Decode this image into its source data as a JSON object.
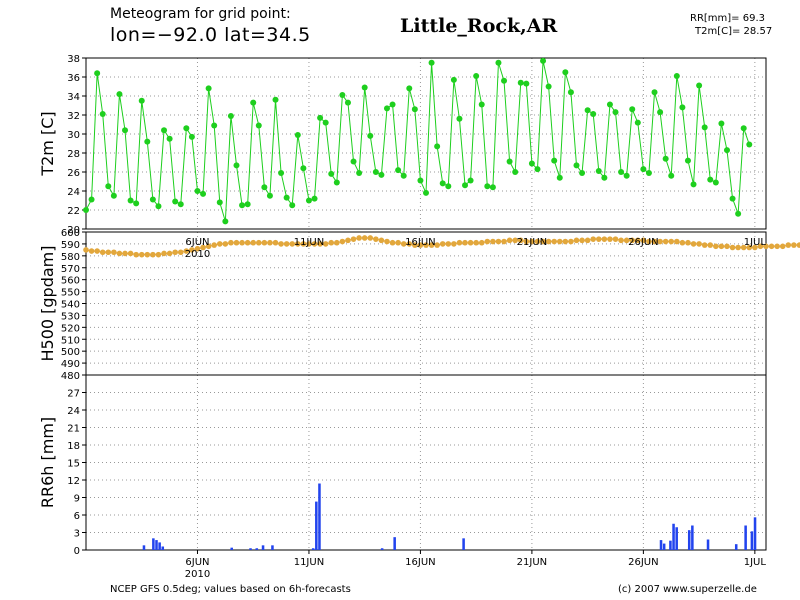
{
  "header": {
    "title_line1": "Meteogram for grid point:",
    "title_line2": "lon=−92.0  lat=34.5",
    "station": "Little_Rock,AR",
    "rr_summary": "RR[mm]= 69.3",
    "t2m_last": "T2m[C]= 28.57"
  },
  "footer": {
    "source": "NCEP GFS 0.5deg; values based on 6h-forecasts",
    "copyright": "(c) 2007 www.superzelle.de"
  },
  "chart_data": [
    {
      "type": "line",
      "ylabel": "T2m [C]",
      "ylim": [
        20,
        38
      ],
      "yticks": [
        20,
        22,
        24,
        26,
        28,
        30,
        32,
        34,
        36,
        38
      ],
      "grid": true,
      "color": "#1ecf1e",
      "x_unit": "6h steps from 1 JUN 2010 00Z",
      "values": [
        22.0,
        23.1,
        36.4,
        32.1,
        24.5,
        23.5,
        34.2,
        30.4,
        23.0,
        22.7,
        33.5,
        29.2,
        23.1,
        22.4,
        30.4,
        29.5,
        22.9,
        22.6,
        30.6,
        29.7,
        24.0,
        23.7,
        34.8,
        30.9,
        22.8,
        20.8,
        31.9,
        26.7,
        22.5,
        22.6,
        33.3,
        30.9,
        24.4,
        23.5,
        33.6,
        25.9,
        23.3,
        22.5,
        29.9,
        26.4,
        23.0,
        23.2,
        31.7,
        31.2,
        25.8,
        24.9,
        34.1,
        33.3,
        27.1,
        25.9,
        34.9,
        29.8,
        26.0,
        25.7,
        32.7,
        33.1,
        26.2,
        25.6,
        34.8,
        32.6,
        25.1,
        23.8,
        37.5,
        28.7,
        24.8,
        24.5,
        35.7,
        31.6,
        24.6,
        25.1,
        36.1,
        33.1,
        24.5,
        24.4,
        37.5,
        35.6,
        27.1,
        26.0,
        35.4,
        35.3,
        26.9,
        26.3,
        37.7,
        35.0,
        27.2,
        25.4,
        36.5,
        34.4,
        26.7,
        25.9,
        32.5,
        32.1,
        26.1,
        25.4,
        33.1,
        32.3,
        26.0,
        25.6,
        32.6,
        31.2,
        26.3,
        25.9,
        34.4,
        32.3,
        27.4,
        25.6,
        36.1,
        32.8,
        27.2,
        24.7,
        35.1,
        30.7,
        25.2,
        24.9,
        31.1,
        28.3,
        23.2,
        21.6,
        30.6,
        28.9
      ]
    },
    {
      "type": "line",
      "ylabel": "H500 [gpdam]",
      "ylim": [
        480,
        600
      ],
      "yticks": [
        480,
        490,
        500,
        510,
        520,
        530,
        540,
        550,
        560,
        570,
        580,
        590,
        600
      ],
      "grid": true,
      "color": "#e2a73c",
      "x_unit": "6h steps from 1 JUN 2010 00Z",
      "values": [
        585,
        584,
        584,
        583,
        583,
        583,
        582,
        582,
        582,
        581,
        581,
        581,
        581,
        581,
        582,
        582,
        583,
        583,
        584,
        585,
        586,
        587,
        588,
        589,
        590,
        590,
        591,
        591,
        591,
        591,
        591,
        591,
        591,
        591,
        591,
        590,
        590,
        590,
        590,
        590,
        590,
        590,
        590,
        590,
        591,
        591,
        592,
        593,
        594,
        595,
        595,
        595,
        594,
        593,
        592,
        591,
        591,
        590,
        590,
        589,
        589,
        589,
        589,
        589,
        590,
        590,
        590,
        591,
        591,
        591,
        591,
        591,
        592,
        592,
        592,
        592,
        593,
        593,
        593,
        592,
        592,
        592,
        592,
        592,
        592,
        592,
        592,
        592,
        593,
        593,
        593,
        594,
        594,
        594,
        594,
        594,
        593,
        593,
        593,
        593,
        593,
        592,
        592,
        592,
        592,
        592,
        592,
        591,
        591,
        590,
        590,
        589,
        589,
        588,
        588,
        588,
        587,
        587,
        587,
        587,
        587,
        588,
        588,
        588,
        588,
        588,
        589,
        589,
        589,
        590,
        590,
        590,
        591,
        591,
        592,
        592
      ]
    },
    {
      "type": "bar",
      "ylabel": "RR6h [mm]",
      "ylim": [
        0,
        30
      ],
      "yticks": [
        0,
        3,
        6,
        9,
        12,
        15,
        18,
        21,
        24,
        27
      ],
      "grid": true,
      "color": "#2244ee",
      "x_unit": "6h steps from 1 JUN 2010 00Z",
      "values": [
        0,
        0,
        0,
        0,
        0,
        0,
        0,
        0,
        0,
        0,
        0,
        0,
        0,
        0,
        0,
        0,
        0,
        0,
        0.8,
        0,
        0,
        2.0,
        1.7,
        1.3,
        0.6,
        0,
        0,
        0,
        0,
        0,
        0,
        0,
        0,
        0,
        0,
        0,
        0,
        0,
        0,
        0,
        0,
        0,
        0,
        0,
        0,
        0,
        0.4,
        0,
        0,
        0,
        0,
        0,
        0.3,
        0,
        0.3,
        0,
        0.8,
        0,
        0,
        0.8,
        0,
        0,
        0,
        0,
        0,
        0,
        0,
        0,
        0,
        0,
        0,
        0,
        0.3,
        8.3,
        11.4,
        0,
        0,
        0,
        0,
        0,
        0,
        0,
        0,
        0,
        0,
        0,
        0,
        0,
        0,
        0,
        0,
        0,
        0,
        0,
        0.3,
        0,
        0,
        0,
        2.2,
        0,
        0,
        0,
        0,
        0,
        0,
        0,
        0,
        0,
        0,
        0,
        0,
        0,
        0,
        0,
        0,
        0,
        0,
        0,
        0,
        0,
        2.0,
        0,
        0,
        0,
        0,
        0,
        0,
        0,
        0,
        0,
        0,
        0,
        0,
        0,
        0,
        0,
        0,
        0,
        0,
        0,
        0,
        0,
        0,
        0,
        0,
        0,
        0,
        0,
        0,
        0,
        0,
        0,
        0,
        0,
        0,
        0,
        0,
        0,
        0,
        0,
        0,
        0,
        0,
        0,
        0,
        0,
        0,
        0,
        0,
        0,
        0,
        0,
        0,
        0,
        0,
        0,
        0,
        0,
        0,
        0,
        0,
        0,
        0,
        1.7,
        1.1,
        0,
        1.6,
        4.5,
        3.9,
        0,
        0,
        0,
        3.4,
        4.2,
        0,
        0,
        0,
        0,
        1.8,
        0,
        0,
        0,
        0,
        0,
        0,
        0,
        0,
        1.0,
        0,
        0,
        4.2,
        0,
        3.2,
        5.6,
        0,
        0,
        0
      ]
    }
  ],
  "x_axis": {
    "ticks": [
      {
        "label": "6JUN",
        "sub": "2010",
        "step": 20
      },
      {
        "label": "11JUN",
        "step": 40
      },
      {
        "label": "16JUN",
        "step": 60
      },
      {
        "label": "21JUN",
        "step": 80
      },
      {
        "label": "26JUN",
        "step": 100
      },
      {
        "label": "1JUL",
        "step": 120
      }
    ],
    "total_steps": 122
  }
}
